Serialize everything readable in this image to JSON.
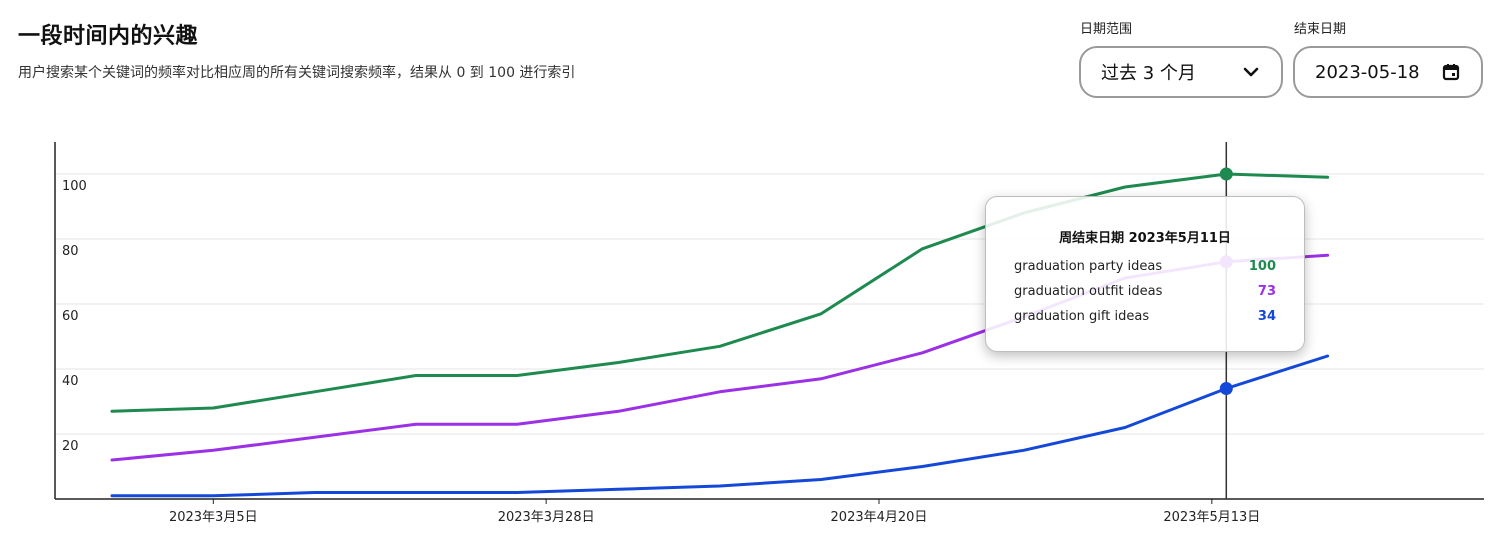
{
  "header": {
    "title": "一段时间内的兴趣",
    "subtitle": "用户搜索某个关键词的频率对比相应周的所有关键词搜索频率，结果从 0 到 100 进行索引"
  },
  "controls": {
    "date_range_label": "日期范围",
    "date_range_value": "过去 3 个月",
    "end_date_label": "结束日期",
    "end_date_value": "2023-05-18"
  },
  "tooltip": {
    "title": "周结束日期 2023年5月11日",
    "rows": [
      {
        "name": "graduation party ideas",
        "value": "100"
      },
      {
        "name": "graduation outfit ideas",
        "value": "73"
      },
      {
        "name": "graduation gift ideas",
        "value": "34"
      }
    ]
  },
  "colors": {
    "party": "#1e8a4f",
    "outfit": "#9b30e6",
    "gift": "#1448d8",
    "axis": "#222222",
    "grid": "#e6e6e6"
  },
  "chart_data": {
    "type": "line",
    "x": [
      "2023-02-26",
      "2023-03-05",
      "2023-03-12",
      "2023-03-19",
      "2023-03-26",
      "2023-04-02",
      "2023-04-09",
      "2023-04-16",
      "2023-04-23",
      "2023-04-30",
      "2023-05-07",
      "2023-05-14",
      "2023-05-21"
    ],
    "x_ticks": [
      "2023年3月5日",
      "2023年3月28日",
      "2023年4月20日",
      "2023年5月13日"
    ],
    "y_ticks": [
      "20",
      "40",
      "60",
      "80",
      "100"
    ],
    "ylim": [
      0,
      110
    ],
    "grid": true,
    "highlight_x": "2023-05-14",
    "series": [
      {
        "name": "graduation party ideas",
        "color_key": "party",
        "values": [
          27,
          28,
          33,
          38,
          38,
          42,
          47,
          57,
          77,
          88,
          96,
          100,
          99
        ]
      },
      {
        "name": "graduation outfit ideas",
        "color_key": "outfit",
        "values": [
          12,
          15,
          19,
          23,
          23,
          27,
          33,
          37,
          45,
          56,
          68,
          73,
          75
        ]
      },
      {
        "name": "graduation gift ideas",
        "color_key": "gift",
        "values": [
          1,
          1,
          2,
          2,
          2,
          3,
          4,
          6,
          10,
          15,
          22,
          34,
          44
        ]
      }
    ]
  }
}
